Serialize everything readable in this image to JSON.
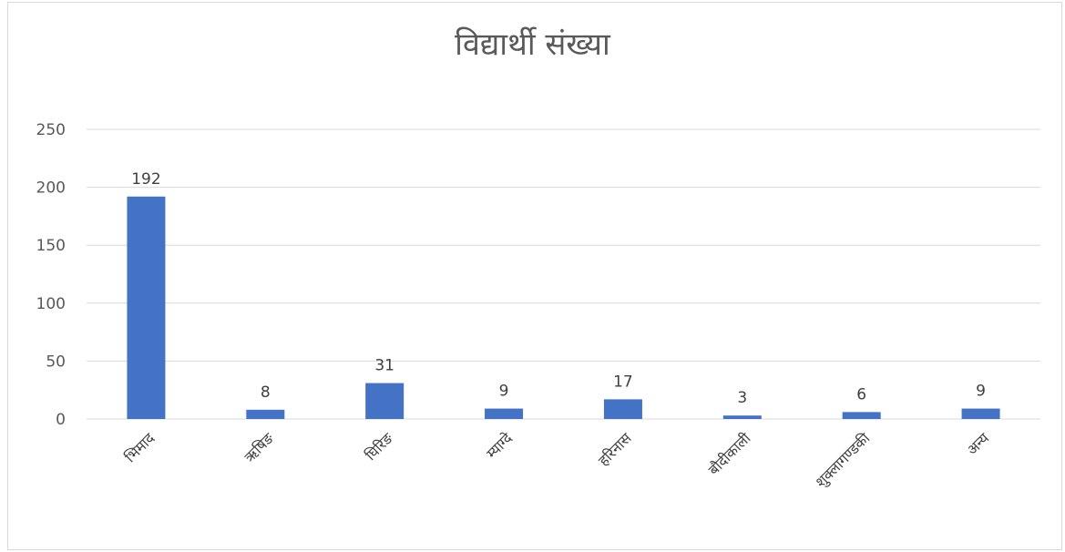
{
  "chart_data": {
    "type": "bar",
    "title": "विद्यार्थी संख्या",
    "xlabel": "",
    "ylabel": "",
    "categories": [
      "भिमाद",
      "ऋषिङ",
      "घिरिङ",
      "म्याग्दे",
      "हरिनास",
      "बौदीकाली",
      "शुक्लागण्डकी",
      "अन्य"
    ],
    "values": [
      192,
      8,
      31,
      9,
      17,
      3,
      6,
      9
    ],
    "ylim": [
      0,
      250
    ],
    "yticks": [
      0,
      50,
      100,
      150,
      200,
      250
    ],
    "grid": true,
    "legend": "none",
    "bar_color": "#4472c4",
    "data_labels": true
  }
}
